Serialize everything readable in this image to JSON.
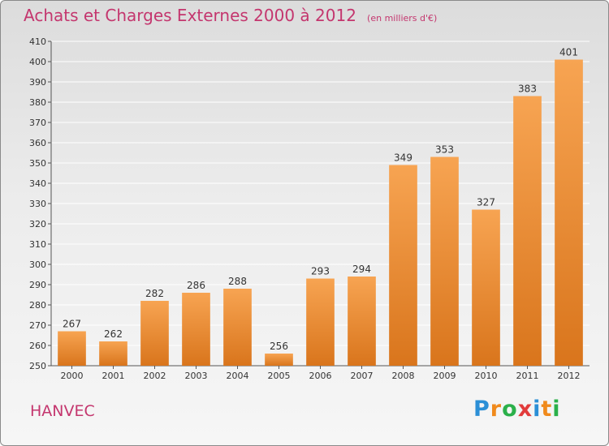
{
  "header": {
    "title": "Achats et Charges Externes 2000 à 2012",
    "unit": "(en milliers d'€)"
  },
  "footer": {
    "place": "HANVEC",
    "brand_letters": [
      {
        "ch": "P",
        "color": "#2b8fd6"
      },
      {
        "ch": "r",
        "color": "#f08a1c"
      },
      {
        "ch": "o",
        "color": "#2bb04a"
      },
      {
        "ch": "x",
        "color": "#e23b3b"
      },
      {
        "ch": "i",
        "color": "#2b8fd6"
      },
      {
        "ch": "t",
        "color": "#f08a1c"
      },
      {
        "ch": "i",
        "color": "#2bb04a"
      }
    ]
  },
  "colors": {
    "bar_light": "#f7a452",
    "bar_dark": "#d9751c",
    "grid": "#ffffff",
    "accent": "#c4366e"
  },
  "chart_data": {
    "type": "bar",
    "title": "Achats et Charges Externes 2000 à 2012",
    "subtitle": "(en milliers d'€)",
    "categories": [
      "2000",
      "2001",
      "2002",
      "2003",
      "2004",
      "2005",
      "2006",
      "2007",
      "2008",
      "2009",
      "2010",
      "2011",
      "2012"
    ],
    "values": [
      267,
      262,
      282,
      286,
      288,
      256,
      293,
      294,
      349,
      353,
      327,
      383,
      401
    ],
    "ylim": [
      250,
      410
    ],
    "yticks": [
      250,
      260,
      270,
      280,
      290,
      300,
      310,
      320,
      330,
      340,
      350,
      360,
      370,
      380,
      390,
      400,
      410
    ],
    "grid": true,
    "legend": "none"
  }
}
